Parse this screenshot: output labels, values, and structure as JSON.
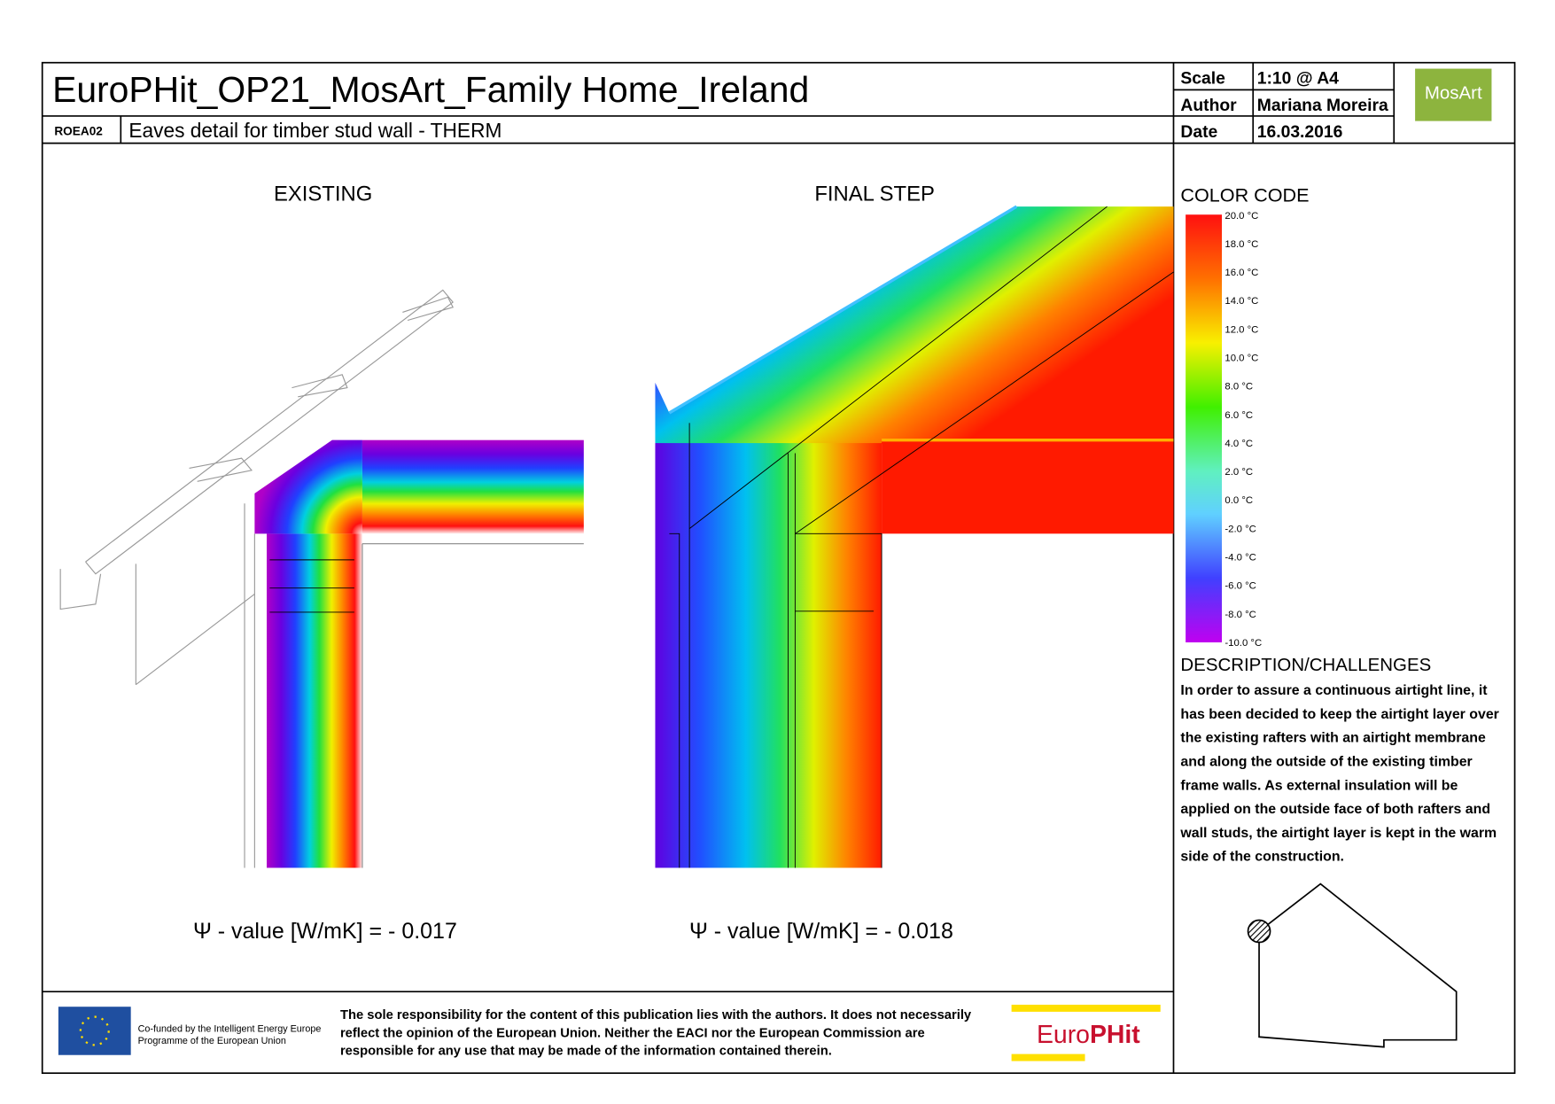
{
  "header": {
    "title": "EuroPHit_OP21_MosArt_Family Home_Ireland",
    "code": "ROEA02",
    "subtitle": "Eaves detail for timber stud wall - THERM",
    "scale_label": "Scale",
    "scale": "1:10 @ A4",
    "author_label": "Author",
    "author": "Mariana Moreira",
    "date_label": "Date",
    "date": "16.03.2016",
    "logo": "MosArt"
  },
  "panels": [
    {
      "title": "EXISTING",
      "psi": "Ψ - value [W/mK] = - 0.017"
    },
    {
      "title": "FINAL STEP",
      "psi": "Ψ - value [W/mK] = - 0.018"
    }
  ],
  "color_code": {
    "title": "COLOR CODE",
    "labels": [
      "20.0 °C",
      "18.0 °C",
      "16.0 °C",
      "14.0 °C",
      "12.0 °C",
      "10.0 °C",
      "8.0 °C",
      "6.0 °C",
      "4.0 °C",
      "2.0 °C",
      "0.0 °C",
      "-2.0 °C",
      "-4.0 °C",
      "-6.0 °C",
      "-8.0 °C",
      "-10.0 °C"
    ]
  },
  "description": {
    "title": "DESCRIPTION/CHALLENGES",
    "lines": [
      "In order to assure a continuous airtight line, it",
      "has been decided to keep the airtight layer over",
      "the existing rafters with an airtight membrane",
      "and along the outside of the existing timber",
      "frame walls. As external insulation will be",
      "applied on the outside face of both rafters and",
      "wall studs, the airtight layer is kept in the warm",
      "side of the construction."
    ]
  },
  "footer": {
    "cofunded": [
      "Co-funded by the Intelligent Energy Europe",
      "Programme of the European Union"
    ],
    "disclaimer": [
      "The sole responsibility for the content of this publication lies with the authors. It does not necessarily",
      "reflect the opinion of the European Union. Neither the EACI nor the European Commission are",
      "responsible for any use that may be made of the information contained therein."
    ],
    "logo_a": "Euro",
    "logo_b": "PHit"
  }
}
